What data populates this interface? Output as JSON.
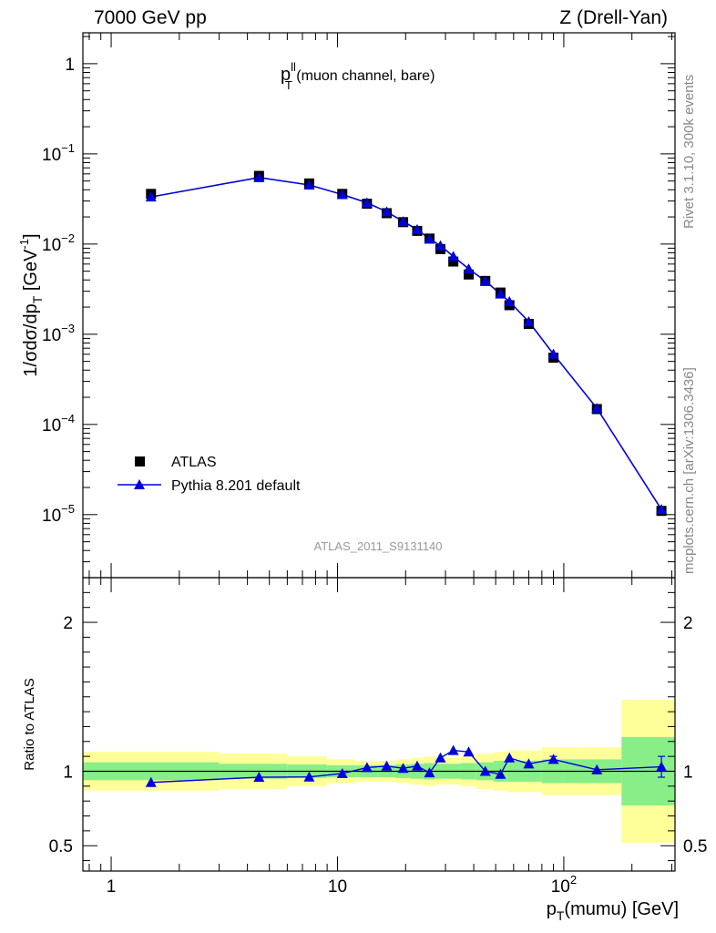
{
  "header": {
    "left": "7000 GeV pp",
    "right": "Z (Drell-Yan)"
  },
  "side_labels": {
    "rivet": "Rivet 3.1.10,  300k events",
    "mcplots": "mcplots.cern.ch [arXiv:1306.3436]"
  },
  "colors": {
    "data": "#000000",
    "mc": "#0000dd",
    "band_inner": "#88ee88",
    "band_outer": "#ffff99"
  },
  "chart_data": [
    {
      "type": "scatter",
      "title": "p_T^ll (muon channel, bare)",
      "title_main": "p",
      "title_sup": "ll",
      "title_sub": "T",
      "title_rest": " (muon channel, bare)",
      "analysis_id": "ATLAS_2011_S9131140",
      "ylabel": "1/σdσ/dp_T [GeV^-1]",
      "xscale": "log",
      "yscale": "log",
      "xlim": [
        0.75,
        310
      ],
      "ylim": [
        2e-06,
        2.2
      ],
      "y_ticks": [
        {
          "value": 1,
          "base": "1",
          "exp": ""
        },
        {
          "value": 0.1,
          "base": "10",
          "exp": "−1"
        },
        {
          "value": 0.01,
          "base": "10",
          "exp": "−2"
        },
        {
          "value": 0.001,
          "base": "10",
          "exp": "−3"
        },
        {
          "value": 0.0001,
          "base": "10",
          "exp": "−4"
        },
        {
          "value": 1e-05,
          "base": "10",
          "exp": "−5"
        }
      ],
      "legend": {
        "position": "bottom-left",
        "entries": [
          "ATLAS",
          "Pythia 8.201 default"
        ]
      },
      "series": [
        {
          "name": "ATLAS",
          "marker": "square",
          "x": [
            1.5,
            4.5,
            7.5,
            10.5,
            13.5,
            16.5,
            19.5,
            22.5,
            25.5,
            28.5,
            32.5,
            38,
            45,
            52.5,
            57.5,
            70,
            90,
            140,
            270
          ],
          "y": [
            0.036,
            0.057,
            0.047,
            0.036,
            0.028,
            0.022,
            0.0175,
            0.014,
            0.0115,
            0.0088,
            0.0064,
            0.0046,
            0.0039,
            0.0029,
            0.0021,
            0.0013,
            0.00055,
            0.000148,
            1.1e-05
          ]
        },
        {
          "name": "Pythia 8.201 default",
          "marker": "triangle",
          "x": [
            1.5,
            4.5,
            7.5,
            10.5,
            13.5,
            16.5,
            19.5,
            22.5,
            25.5,
            28.5,
            32.5,
            38,
            45,
            52.5,
            57.5,
            70,
            90,
            140,
            270
          ],
          "y": [
            0.0333,
            0.0547,
            0.0452,
            0.0354,
            0.0287,
            0.0228,
            0.0178,
            0.0145,
            0.0114,
            0.0096,
            0.0073,
            0.0053,
            0.0039,
            0.0028,
            0.0023,
            0.00138,
            0.000602,
            0.000151,
            1.14e-05
          ]
        }
      ]
    },
    {
      "type": "line",
      "ylabel": "Ratio to ATLAS",
      "xlabel": "p_T(mumu) [GeV]",
      "xlabel_main": "p",
      "xlabel_sub": "T",
      "xlabel_rest": "(mumu) [GeV]",
      "xscale": "log",
      "xlim": [
        0.75,
        310
      ],
      "ylim": [
        0.33,
        2.3
      ],
      "y_ticks": [
        {
          "value": 0.5,
          "label": "0.5"
        },
        {
          "value": 1,
          "label": "1"
        },
        {
          "value": 2,
          "label": "2"
        }
      ],
      "x_ticks": [
        {
          "value": 1,
          "base": "1",
          "exp": ""
        },
        {
          "value": 10,
          "base": "10",
          "exp": ""
        },
        {
          "value": 100,
          "base": "10",
          "exp": "2"
        }
      ],
      "bands": {
        "edges": [
          0.75,
          3,
          6,
          9,
          12,
          15,
          18,
          21,
          24,
          27,
          30,
          35,
          41,
          49,
          56,
          59,
          80,
          100,
          180,
          310
        ],
        "inner": [
          0.06,
          0.05,
          0.045,
          0.04,
          0.04,
          0.04,
          0.045,
          0.05,
          0.055,
          0.05,
          0.05,
          0.055,
          0.06,
          0.07,
          0.07,
          0.07,
          0.08,
          0.08,
          0.23
        ],
        "outer": [
          0.13,
          0.12,
          0.1,
          0.08,
          0.07,
          0.07,
          0.08,
          0.09,
          0.1,
          0.09,
          0.09,
          0.1,
          0.12,
          0.13,
          0.14,
          0.14,
          0.16,
          0.16,
          0.48
        ]
      },
      "series": [
        {
          "name": "Pythia 8.201 default",
          "x": [
            1.5,
            4.5,
            7.5,
            10.5,
            13.5,
            16.5,
            19.5,
            22.5,
            25.5,
            28.5,
            32.5,
            38,
            45,
            52.5,
            57.5,
            70,
            90,
            140,
            270
          ],
          "y": [
            0.925,
            0.96,
            0.962,
            0.985,
            1.025,
            1.035,
            1.02,
            1.035,
            0.99,
            1.09,
            1.14,
            1.13,
            1.0,
            0.98,
            1.09,
            1.05,
            1.08,
            1.01,
            1.03
          ],
          "yerr": [
            0,
            0,
            0,
            0,
            0,
            0,
            0,
            0,
            0,
            0,
            0,
            0,
            0,
            0,
            0,
            0,
            0.02,
            0,
            0.07
          ]
        }
      ]
    }
  ]
}
